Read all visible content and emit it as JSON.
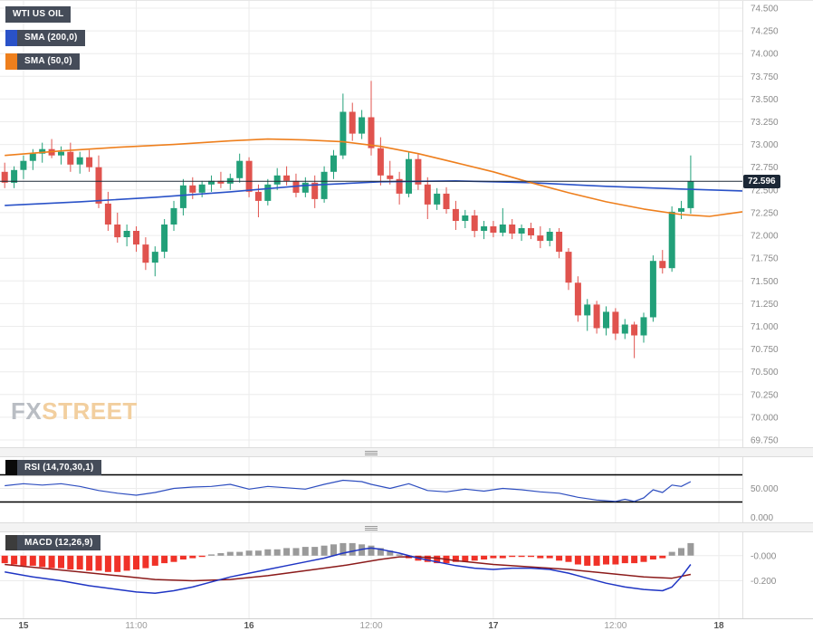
{
  "colors": {
    "up": "#22a079",
    "down": "#e0534e",
    "sma200": "#2a52c8",
    "sma50": "#ee7f1d",
    "rsi_line": "#2f4fc0",
    "macd_line": "#1f35c4",
    "signal_line": "#8b1a1a",
    "hist_pos": "#9a9a9a",
    "hist_neg": "#f03228",
    "grid": "#ececec",
    "axis_border": "#e0e0e0",
    "axis_text": "#8a8a8a",
    "price_line": "#1c2836",
    "badge_bg": "#454c59",
    "badge_text": "#ffffff",
    "level_line": "#000000",
    "rsi_chip": "#0a0a0a",
    "macd_chip": "#3c3c3c",
    "watermark_fx": "#b9bdc3",
    "watermark_street": "#f2cf9f"
  },
  "watermark": {
    "fx": "FX",
    "street": "STREET"
  },
  "time_axis": {
    "labels": [
      {
        "text": "15",
        "index": 2,
        "bold": true
      },
      {
        "text": "11:00",
        "index": 14,
        "bold": false
      },
      {
        "text": "16",
        "index": 26,
        "bold": true
      },
      {
        "text": "12:00",
        "index": 39,
        "bold": false
      },
      {
        "text": "17",
        "index": 52,
        "bold": true
      },
      {
        "text": "12:00",
        "index": 65,
        "bold": false
      },
      {
        "text": "18",
        "index": 76,
        "bold": true
      }
    ]
  },
  "chart_data": [
    {
      "type": "candlestick",
      "symbol": "WTI US OIL",
      "slots": 79,
      "ylim": [
        69.67,
        74.58
      ],
      "last_price": 72.596,
      "last_price_label": "72.596",
      "ticks": [
        {
          "v": 74.5,
          "label": "74.500"
        },
        {
          "v": 74.25,
          "label": "74.250"
        },
        {
          "v": 74.0,
          "label": "74.000"
        },
        {
          "v": 73.75,
          "label": "73.750"
        },
        {
          "v": 73.5,
          "label": "73.500"
        },
        {
          "v": 73.25,
          "label": "73.250"
        },
        {
          "v": 73.0,
          "label": "73.000"
        },
        {
          "v": 72.75,
          "label": "72.750"
        },
        {
          "v": 72.5,
          "label": "72.500"
        },
        {
          "v": 72.25,
          "label": "72.250"
        },
        {
          "v": 72.0,
          "label": "72.000"
        },
        {
          "v": 71.75,
          "label": "71.750"
        },
        {
          "v": 71.5,
          "label": "71.500"
        },
        {
          "v": 71.25,
          "label": "71.250"
        },
        {
          "v": 71.0,
          "label": "71.000"
        },
        {
          "v": 70.75,
          "label": "70.750"
        },
        {
          "v": 70.5,
          "label": "70.500"
        },
        {
          "v": 70.25,
          "label": "70.250"
        },
        {
          "v": 70.0,
          "label": "70.000"
        },
        {
          "v": 69.75,
          "label": "69.750"
        }
      ],
      "candles": [
        [
          72.7,
          72.8,
          72.52,
          72.58
        ],
        [
          72.58,
          72.76,
          72.52,
          72.72
        ],
        [
          72.72,
          72.88,
          72.62,
          72.82
        ],
        [
          72.82,
          72.95,
          72.72,
          72.9
        ],
        [
          72.9,
          73.02,
          72.8,
          72.95
        ],
        [
          72.95,
          73.06,
          72.85,
          72.88
        ],
        [
          72.88,
          72.98,
          72.78,
          72.92
        ],
        [
          72.92,
          73.02,
          72.7,
          72.78
        ],
        [
          72.78,
          72.92,
          72.68,
          72.86
        ],
        [
          72.86,
          72.94,
          72.7,
          72.75
        ],
        [
          72.75,
          72.88,
          72.3,
          72.35
        ],
        [
          72.35,
          72.48,
          72.05,
          72.12
        ],
        [
          72.12,
          72.25,
          71.92,
          71.98
        ],
        [
          71.98,
          72.12,
          71.88,
          72.05
        ],
        [
          72.05,
          72.1,
          71.82,
          71.9
        ],
        [
          71.9,
          71.98,
          71.62,
          71.7
        ],
        [
          71.7,
          71.88,
          71.55,
          71.82
        ],
        [
          71.82,
          72.18,
          71.75,
          72.12
        ],
        [
          72.12,
          72.38,
          72.05,
          72.3
        ],
        [
          72.3,
          72.62,
          72.22,
          72.55
        ],
        [
          72.55,
          72.64,
          72.4,
          72.47
        ],
        [
          72.47,
          72.6,
          72.42,
          72.56
        ],
        [
          72.56,
          72.66,
          72.48,
          72.6
        ],
        [
          72.6,
          72.7,
          72.52,
          72.57
        ],
        [
          72.57,
          72.68,
          72.5,
          72.63
        ],
        [
          72.63,
          72.9,
          72.58,
          72.82
        ],
        [
          72.82,
          72.86,
          72.42,
          72.48
        ],
        [
          72.48,
          72.56,
          72.2,
          72.38
        ],
        [
          72.38,
          72.62,
          72.33,
          72.56
        ],
        [
          72.56,
          72.74,
          72.5,
          72.66
        ],
        [
          72.66,
          72.76,
          72.55,
          72.6
        ],
        [
          72.6,
          72.68,
          72.42,
          72.47
        ],
        [
          72.47,
          72.64,
          72.42,
          72.58
        ],
        [
          72.58,
          72.66,
          72.3,
          72.4
        ],
        [
          72.4,
          72.76,
          72.36,
          72.7
        ],
        [
          72.7,
          72.94,
          72.62,
          72.88
        ],
        [
          72.88,
          73.56,
          72.84,
          73.36
        ],
        [
          73.36,
          73.46,
          73.04,
          73.12
        ],
        [
          73.12,
          73.38,
          73.06,
          73.3
        ],
        [
          73.3,
          73.7,
          72.88,
          72.96
        ],
        [
          72.96,
          73.08,
          72.55,
          72.66
        ],
        [
          72.66,
          72.82,
          72.56,
          72.62
        ],
        [
          72.62,
          72.7,
          72.34,
          72.46
        ],
        [
          72.46,
          72.92,
          72.42,
          72.84
        ],
        [
          72.84,
          72.9,
          72.5,
          72.56
        ],
        [
          72.56,
          72.64,
          72.18,
          72.34
        ],
        [
          72.34,
          72.52,
          72.28,
          72.46
        ],
        [
          72.46,
          72.53,
          72.24,
          72.29
        ],
        [
          72.29,
          72.38,
          72.06,
          72.16
        ],
        [
          72.16,
          72.28,
          72.08,
          72.22
        ],
        [
          72.22,
          72.28,
          71.98,
          72.05
        ],
        [
          72.05,
          72.16,
          71.96,
          72.1
        ],
        [
          72.1,
          72.16,
          71.98,
          72.03
        ],
        [
          72.03,
          72.3,
          71.99,
          72.12
        ],
        [
          72.12,
          72.18,
          71.96,
          72.02
        ],
        [
          72.02,
          72.12,
          71.94,
          72.08
        ],
        [
          72.08,
          72.14,
          71.96,
          72.0
        ],
        [
          72.0,
          72.1,
          71.86,
          71.94
        ],
        [
          71.94,
          72.08,
          71.88,
          72.04
        ],
        [
          72.04,
          72.08,
          71.75,
          71.82
        ],
        [
          71.82,
          71.86,
          71.4,
          71.48
        ],
        [
          71.48,
          71.55,
          71.05,
          71.12
        ],
        [
          71.12,
          71.3,
          70.95,
          71.24
        ],
        [
          71.24,
          71.28,
          70.92,
          70.98
        ],
        [
          70.98,
          71.22,
          70.9,
          71.16
        ],
        [
          71.16,
          71.2,
          70.85,
          70.92
        ],
        [
          70.92,
          71.08,
          70.86,
          71.02
        ],
        [
          71.02,
          71.05,
          70.65,
          70.9
        ],
        [
          70.9,
          71.15,
          70.82,
          71.1
        ],
        [
          71.1,
          71.78,
          71.05,
          71.72
        ],
        [
          71.72,
          71.84,
          71.58,
          71.64
        ],
        [
          71.64,
          72.32,
          71.6,
          72.26
        ],
        [
          72.26,
          72.38,
          72.18,
          72.3
        ],
        [
          72.3,
          72.88,
          72.24,
          72.596
        ]
      ],
      "overlays": [
        {
          "name": "SMA (200,0)",
          "color_key": "sma200",
          "points": [
            [
              0,
              72.33
            ],
            [
              8,
              72.37
            ],
            [
              16,
              72.42
            ],
            [
              24,
              72.48
            ],
            [
              32,
              72.55
            ],
            [
              40,
              72.59
            ],
            [
              48,
              72.6
            ],
            [
              56,
              72.58
            ],
            [
              64,
              72.54
            ],
            [
              72,
              72.51
            ],
            [
              78.5,
              72.49
            ]
          ]
        },
        {
          "name": "SMA (50,0)",
          "color_key": "sma50",
          "points": [
            [
              0,
              72.88
            ],
            [
              6,
              72.93
            ],
            [
              12,
              72.97
            ],
            [
              18,
              73.0
            ],
            [
              24,
              73.04
            ],
            [
              28,
              73.06
            ],
            [
              32,
              73.05
            ],
            [
              36,
              73.03
            ],
            [
              40,
              72.98
            ],
            [
              44,
              72.9
            ],
            [
              48,
              72.8
            ],
            [
              52,
              72.7
            ],
            [
              56,
              72.58
            ],
            [
              60,
              72.47
            ],
            [
              64,
              72.37
            ],
            [
              68,
              72.29
            ],
            [
              72,
              72.23
            ],
            [
              75,
              72.21
            ],
            [
              78.5,
              72.26
            ]
          ]
        }
      ]
    },
    {
      "type": "line",
      "name": "RSI (14,70,30,1)",
      "ylim": [
        0,
        96
      ],
      "levels": [
        70,
        30
      ],
      "ticks": [
        {
          "v": 50,
          "label": "50.000"
        },
        {
          "v": 0,
          "label": "0.000"
        }
      ],
      "points": [
        [
          0,
          54
        ],
        [
          2,
          57
        ],
        [
          4,
          55
        ],
        [
          6,
          57
        ],
        [
          8,
          53
        ],
        [
          10,
          47
        ],
        [
          12,
          43
        ],
        [
          14,
          40
        ],
        [
          16,
          44
        ],
        [
          18,
          50
        ],
        [
          20,
          52
        ],
        [
          22,
          53
        ],
        [
          24,
          56
        ],
        [
          26,
          49
        ],
        [
          28,
          53
        ],
        [
          30,
          51
        ],
        [
          32,
          49
        ],
        [
          34,
          56
        ],
        [
          36,
          62
        ],
        [
          38,
          60
        ],
        [
          39,
          56
        ],
        [
          41,
          50
        ],
        [
          43,
          57
        ],
        [
          45,
          47
        ],
        [
          47,
          45
        ],
        [
          49,
          49
        ],
        [
          51,
          46
        ],
        [
          53,
          50
        ],
        [
          55,
          48
        ],
        [
          57,
          45
        ],
        [
          59,
          43
        ],
        [
          61,
          37
        ],
        [
          63,
          33
        ],
        [
          65,
          31
        ],
        [
          66,
          34
        ],
        [
          67,
          31
        ],
        [
          68,
          36
        ],
        [
          69,
          48
        ],
        [
          70,
          44
        ],
        [
          71,
          55
        ],
        [
          72,
          53
        ],
        [
          73,
          60
        ]
      ]
    },
    {
      "type": "macd",
      "name": "MACD (12,26,9)",
      "ylim": [
        -0.5,
        0.186
      ],
      "ticks": [
        {
          "v": 0,
          "label": "-0.000"
        },
        {
          "v": -0.2,
          "label": "-0.200"
        }
      ],
      "histogram": [
        -0.06,
        -0.07,
        -0.08,
        -0.08,
        -0.09,
        -0.1,
        -0.1,
        -0.11,
        -0.11,
        -0.12,
        -0.12,
        -0.13,
        -0.13,
        -0.12,
        -0.11,
        -0.1,
        -0.08,
        -0.06,
        -0.05,
        -0.03,
        -0.02,
        -0.01,
        0.01,
        0.02,
        0.03,
        0.03,
        0.04,
        0.04,
        0.05,
        0.05,
        0.06,
        0.06,
        0.07,
        0.07,
        0.08,
        0.09,
        0.1,
        0.1,
        0.09,
        0.08,
        0.06,
        0.04,
        0.01,
        -0.02,
        -0.04,
        -0.05,
        -0.06,
        -0.06,
        -0.05,
        -0.05,
        -0.04,
        -0.03,
        -0.02,
        -0.02,
        -0.01,
        -0.01,
        -0.01,
        -0.02,
        -0.02,
        -0.04,
        -0.05,
        -0.07,
        -0.08,
        -0.08,
        -0.07,
        -0.07,
        -0.06,
        -0.06,
        -0.05,
        -0.03,
        -0.02,
        0.03,
        0.06,
        0.1
      ],
      "macd_line": [
        [
          0,
          -0.13
        ],
        [
          3,
          -0.17
        ],
        [
          6,
          -0.2
        ],
        [
          9,
          -0.24
        ],
        [
          12,
          -0.27
        ],
        [
          14,
          -0.29
        ],
        [
          16,
          -0.3
        ],
        [
          18,
          -0.28
        ],
        [
          20,
          -0.25
        ],
        [
          22,
          -0.21
        ],
        [
          24,
          -0.17
        ],
        [
          26,
          -0.14
        ],
        [
          28,
          -0.11
        ],
        [
          30,
          -0.08
        ],
        [
          32,
          -0.05
        ],
        [
          34,
          -0.02
        ],
        [
          36,
          0.02
        ],
        [
          38,
          0.05
        ],
        [
          39,
          0.06
        ],
        [
          40,
          0.05
        ],
        [
          42,
          0.02
        ],
        [
          44,
          -0.02
        ],
        [
          46,
          -0.05
        ],
        [
          48,
          -0.08
        ],
        [
          50,
          -0.1
        ],
        [
          52,
          -0.11
        ],
        [
          54,
          -0.1
        ],
        [
          56,
          -0.1
        ],
        [
          58,
          -0.11
        ],
        [
          60,
          -0.14
        ],
        [
          62,
          -0.18
        ],
        [
          64,
          -0.22
        ],
        [
          66,
          -0.25
        ],
        [
          68,
          -0.27
        ],
        [
          70,
          -0.28
        ],
        [
          71,
          -0.25
        ],
        [
          72,
          -0.17
        ],
        [
          73,
          -0.07
        ]
      ],
      "signal_line": [
        [
          0,
          -0.07
        ],
        [
          4,
          -0.1
        ],
        [
          8,
          -0.13
        ],
        [
          12,
          -0.16
        ],
        [
          16,
          -0.19
        ],
        [
          20,
          -0.2
        ],
        [
          24,
          -0.19
        ],
        [
          28,
          -0.16
        ],
        [
          32,
          -0.12
        ],
        [
          36,
          -0.08
        ],
        [
          40,
          -0.03
        ],
        [
          42,
          -0.01
        ],
        [
          44,
          -0.01
        ],
        [
          46,
          -0.02
        ],
        [
          48,
          -0.04
        ],
        [
          52,
          -0.07
        ],
        [
          56,
          -0.09
        ],
        [
          60,
          -0.11
        ],
        [
          64,
          -0.14
        ],
        [
          68,
          -0.17
        ],
        [
          71,
          -0.18
        ],
        [
          73,
          -0.15
        ]
      ]
    }
  ]
}
